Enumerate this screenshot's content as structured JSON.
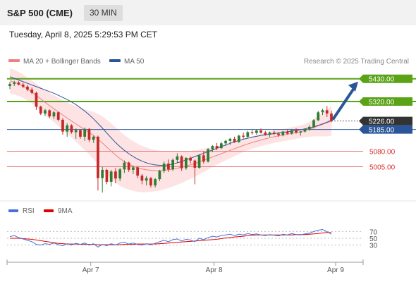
{
  "header": {
    "title": "S&P 500 (CME)",
    "timeframe": "30 MIN"
  },
  "datetime": "Tuesday, April 8, 2025 5:29:53 PM CET",
  "legend": {
    "ma20_label": "MA 20 + Bollinger Bands",
    "ma50_label": "MA 50",
    "ma20_color": "#f08080",
    "ma50_color": "#2a5599",
    "copyright": "Research © 2025 Trading Central"
  },
  "colors": {
    "up": "#2e7d32",
    "down": "#c62828",
    "resistance": "#5aa317",
    "support": "#e57373",
    "pivot": "#2a5599",
    "current": "#333333",
    "bollinger_fill": "#fde3e3",
    "arrow": "#2a5599"
  },
  "chart_data": [
    {
      "type": "candlestick",
      "x_tick_labels": [
        "Apr 7",
        "Apr 8",
        "Apr 9"
      ],
      "ylim": [
        4850,
        5470
      ],
      "price_levels": [
        {
          "label": "5430.00",
          "value": 5430,
          "kind": "resistance"
        },
        {
          "label": "5320.00",
          "value": 5320,
          "kind": "resistance"
        },
        {
          "label": "5226.00",
          "value": 5226,
          "kind": "current"
        },
        {
          "label": "5185.00",
          "value": 5185,
          "kind": "pivot"
        },
        {
          "label": "5080.00",
          "value": 5080,
          "kind": "support"
        },
        {
          "label": "5005.00",
          "value": 5005,
          "kind": "support"
        }
      ],
      "candles_ohlc": [
        [
          5395,
          5415,
          5380,
          5405
        ],
        [
          5405,
          5420,
          5395,
          5412
        ],
        [
          5412,
          5418,
          5398,
          5402
        ],
        [
          5402,
          5410,
          5385,
          5392
        ],
        [
          5392,
          5400,
          5370,
          5378
        ],
        [
          5378,
          5388,
          5355,
          5362
        ],
        [
          5362,
          5368,
          5280,
          5295
        ],
        [
          5295,
          5300,
          5255,
          5262
        ],
        [
          5262,
          5285,
          5250,
          5278
        ],
        [
          5278,
          5282,
          5240,
          5248
        ],
        [
          5248,
          5275,
          5235,
          5268
        ],
        [
          5268,
          5272,
          5225,
          5232
        ],
        [
          5232,
          5240,
          5160,
          5175
        ],
        [
          5175,
          5215,
          5150,
          5205
        ],
        [
          5205,
          5210,
          5165,
          5172
        ],
        [
          5172,
          5190,
          5140,
          5182
        ],
        [
          5182,
          5186,
          5140,
          5150
        ],
        [
          5150,
          5195,
          5130,
          5188
        ],
        [
          5188,
          5192,
          5125,
          5135
        ],
        [
          5135,
          5155,
          5120,
          5150
        ],
        [
          5150,
          5155,
          4890,
          4950
        ],
        [
          4950,
          5005,
          4880,
          4990
        ],
        [
          4990,
          4995,
          4920,
          4932
        ],
        [
          4932,
          4990,
          4910,
          4982
        ],
        [
          4982,
          4998,
          4925,
          4948
        ],
        [
          4948,
          5000,
          4935,
          4992
        ],
        [
          4992,
          5035,
          4975,
          5025
        ],
        [
          5025,
          5030,
          4980,
          4990
        ],
        [
          4990,
          5010,
          4970,
          5002
        ],
        [
          5002,
          5008,
          4950,
          4962
        ],
        [
          4962,
          4970,
          4920,
          4938
        ],
        [
          4938,
          4960,
          4915,
          4950
        ],
        [
          4950,
          4955,
          4905,
          4915
        ],
        [
          4915,
          4950,
          4905,
          4945
        ],
        [
          4945,
          4990,
          4935,
          4985
        ],
        [
          4985,
          5030,
          4975,
          5020
        ],
        [
          5020,
          5040,
          4980,
          4992
        ],
        [
          4992,
          5045,
          4985,
          5038
        ],
        [
          5038,
          5070,
          5025,
          5055
        ],
        [
          5055,
          5060,
          4985,
          4998
        ],
        [
          4998,
          5050,
          4990,
          5048
        ],
        [
          5048,
          5055,
          5020,
          5035
        ],
        [
          5035,
          5040,
          4920,
          5000
        ],
        [
          5000,
          5065,
          4995,
          5060
        ],
        [
          5060,
          5080,
          5020,
          5030
        ],
        [
          5030,
          5095,
          5025,
          5090
        ],
        [
          5090,
          5110,
          5075,
          5105
        ],
        [
          5105,
          5120,
          5085,
          5095
        ],
        [
          5095,
          5125,
          5090,
          5118
        ],
        [
          5118,
          5135,
          5105,
          5130
        ],
        [
          5130,
          5145,
          5110,
          5140
        ],
        [
          5140,
          5150,
          5120,
          5125
        ],
        [
          5125,
          5160,
          5120,
          5155
        ],
        [
          5155,
          5170,
          5140,
          5150
        ],
        [
          5150,
          5178,
          5145,
          5172
        ],
        [
          5172,
          5182,
          5160,
          5168
        ],
        [
          5168,
          5185,
          5160,
          5180
        ],
        [
          5180,
          5190,
          5165,
          5170
        ],
        [
          5170,
          5178,
          5155,
          5160
        ],
        [
          5160,
          5175,
          5150,
          5170
        ],
        [
          5170,
          5180,
          5158,
          5165
        ],
        [
          5165,
          5172,
          5150,
          5158
        ],
        [
          5158,
          5178,
          5152,
          5175
        ],
        [
          5175,
          5182,
          5160,
          5165
        ],
        [
          5165,
          5185,
          5160,
          5182
        ],
        [
          5182,
          5190,
          5165,
          5170
        ],
        [
          5170,
          5178,
          5155,
          5175
        ],
        [
          5175,
          5190,
          5170,
          5185
        ],
        [
          5185,
          5205,
          5178,
          5198
        ],
        [
          5198,
          5235,
          5190,
          5230
        ],
        [
          5230,
          5275,
          5225,
          5268
        ],
        [
          5268,
          5285,
          5255,
          5278
        ],
        [
          5278,
          5298,
          5245,
          5262
        ],
        [
          5262,
          5275,
          5220,
          5226
        ]
      ],
      "ma50_values": [
        5440,
        5432,
        5424,
        5416,
        5408,
        5400,
        5392,
        5384,
        5376,
        5368,
        5360,
        5350,
        5340,
        5330,
        5318,
        5305,
        5290,
        5274,
        5256,
        5236,
        5214,
        5192,
        5168,
        5145,
        5122,
        5102,
        5084,
        5068,
        5054,
        5042,
        5032,
        5024,
        5018,
        5014,
        5012,
        5012,
        5014,
        5018,
        5024,
        5030,
        5038,
        5046,
        5054,
        5062,
        5070,
        5078,
        5086,
        5094,
        5102,
        5110,
        5118,
        5125,
        5132,
        5138,
        5143,
        5148,
        5152,
        5156,
        5159,
        5162,
        5165,
        5168,
        5171,
        5174,
        5177,
        5180,
        5184,
        5188,
        5193,
        5198,
        5205,
        5212,
        5220,
        5230
      ],
      "ma20_values": [
        5420,
        5414,
        5405,
        5394,
        5380,
        5366,
        5350,
        5333,
        5316,
        5300,
        5285,
        5270,
        5255,
        5240,
        5226,
        5212,
        5198,
        5184,
        5170,
        5156,
        5138,
        5120,
        5100,
        5080,
        5062,
        5044,
        5030,
        5018,
        5008,
        5000,
        4994,
        4990,
        4988,
        4986,
        4986,
        4988,
        4990,
        4994,
        4998,
        5002,
        5008,
        5014,
        5020,
        5028,
        5036,
        5044,
        5052,
        5060,
        5068,
        5076,
        5084,
        5092,
        5100,
        5108,
        5115,
        5122,
        5128,
        5134,
        5140,
        5145,
        5150,
        5154,
        5158,
        5162,
        5166,
        5170,
        5174,
        5180,
        5186,
        5194,
        5202,
        5210,
        5218,
        5226
      ],
      "bollinger_band_width": [
        60,
        60,
        58,
        56,
        55,
        55,
        56,
        58,
        60,
        62,
        65,
        68,
        72,
        76,
        80,
        86,
        92,
        98,
        106,
        114,
        122,
        128,
        132,
        134,
        134,
        132,
        128,
        124,
        120,
        116,
        112,
        108,
        104,
        100,
        96,
        92,
        88,
        84,
        80,
        76,
        72,
        68,
        64,
        60,
        56,
        52,
        48,
        45,
        42,
        40,
        38,
        36,
        34,
        32,
        30,
        30,
        30,
        30,
        30,
        30,
        30,
        30,
        30,
        30,
        30,
        30,
        30,
        32,
        36,
        42,
        50,
        58,
        66,
        72
      ]
    },
    {
      "type": "line",
      "panel": "RSI",
      "legend": [
        {
          "name": "RSI",
          "color": "#4a6fd8"
        },
        {
          "name": "9MA",
          "color": "#e00000"
        }
      ],
      "ylim": [
        0,
        100
      ],
      "y_tick_labels": [
        "70",
        "50",
        "30"
      ],
      "y_ticks": [
        70,
        50,
        30
      ],
      "rsi_values": [
        55,
        58,
        52,
        48,
        44,
        40,
        32,
        30,
        34,
        32,
        36,
        31,
        28,
        34,
        30,
        35,
        32,
        36,
        30,
        34,
        24,
        32,
        28,
        34,
        30,
        36,
        38,
        33,
        36,
        32,
        30,
        34,
        31,
        35,
        40,
        44,
        40,
        46,
        48,
        42,
        47,
        45,
        40,
        50,
        46,
        52,
        56,
        54,
        58,
        60,
        62,
        58,
        62,
        60,
        64,
        61,
        63,
        60,
        58,
        61,
        59,
        57,
        62,
        60,
        64,
        61,
        60,
        63,
        65,
        70,
        74,
        76,
        70,
        62
      ],
      "ma9_values": [
        50,
        50,
        50,
        49,
        48,
        47,
        45,
        43,
        41,
        39,
        37,
        35,
        34,
        33,
        33,
        33,
        32,
        32,
        32,
        32,
        31,
        31,
        31,
        31,
        31,
        31,
        32,
        32,
        32,
        33,
        33,
        33,
        33,
        33,
        34,
        35,
        36,
        37,
        38,
        39,
        40,
        41,
        42,
        43,
        44,
        45,
        46,
        47,
        49,
        51,
        52,
        54,
        55,
        56,
        58,
        59,
        60,
        60,
        60,
        60,
        60,
        60,
        60,
        60,
        60,
        61,
        61,
        61,
        62,
        63,
        64,
        66,
        67,
        67
      ]
    }
  ]
}
